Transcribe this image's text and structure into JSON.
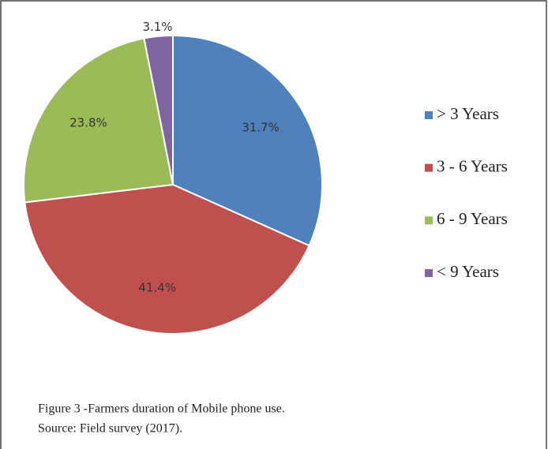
{
  "chart_data": {
    "type": "pie",
    "categories": [
      "> 3 Years",
      "3 - 6 Years",
      "6 - 9 Years",
      "< 9 Years"
    ],
    "values": [
      31.7,
      41.4,
      23.8,
      3.1
    ],
    "value_labels": [
      "31.7%",
      "41.4%",
      "23.8%",
      "3.1%"
    ],
    "colors": [
      "#4f81bd",
      "#c0504d",
      "#9bbb59",
      "#8064a2"
    ],
    "legend": "right",
    "caption": [
      "Figure 3 -Farmers duration of Mobile phone use.",
      "Source: Field survey (2017)."
    ]
  }
}
